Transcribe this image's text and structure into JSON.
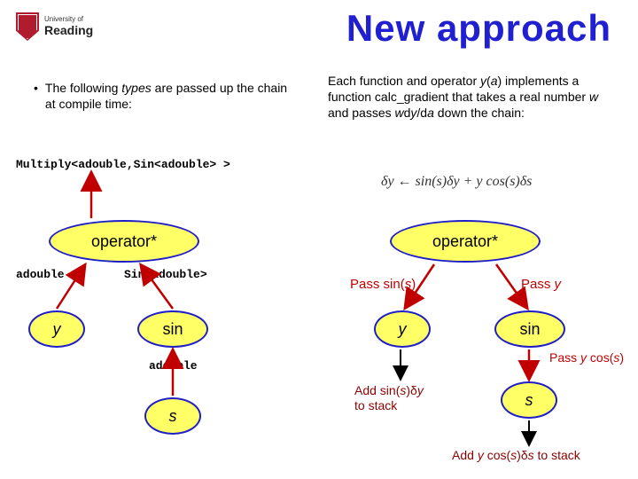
{
  "logo": {
    "uni": "University of",
    "name": "Reading"
  },
  "title": "New approach",
  "left_bullet": "The following <i>types</i> are passed up the chain at compile time:",
  "right_para": "Each function and operator <i>y</i>(<i>a</i>) implements a function calc_gradient that takes a real number <i>w</i> and passes <i>w</i>d<i>y</i>/d<i>a</i> down the chain:",
  "code_line": "Multiply<adouble,Sin<adouble> >",
  "formula": "δy ← sin(s)δy + y cos(s)δs",
  "left_tree": {
    "op": "operator*",
    "adouble": "adouble",
    "sin_adouble": "Sin<adouble>",
    "y": "y",
    "sin": "sin",
    "s": "s",
    "adouble2": "adouble"
  },
  "right_tree": {
    "op": "operator*",
    "y": "y",
    "sin": "sin",
    "s": "s",
    "pass_sins": "Pass sin(<i>s</i>)",
    "pass_y": "Pass <i>y</i>",
    "pass_ycos": "Pass <i>y</i> cos(<i>s</i>)",
    "add1": "Add sin(<i>s</i>)δ<i>y</i><br>to stack",
    "add2": "Add <i>y</i> cos(<i>s</i>)δ<i>s</i> to stack"
  },
  "colors": {
    "title": "#2020d0",
    "ellipse_fill": "#ffff66",
    "ellipse_stroke": "#1e1ec8",
    "red_arrow": "#c00000",
    "arrow": "#000000"
  }
}
